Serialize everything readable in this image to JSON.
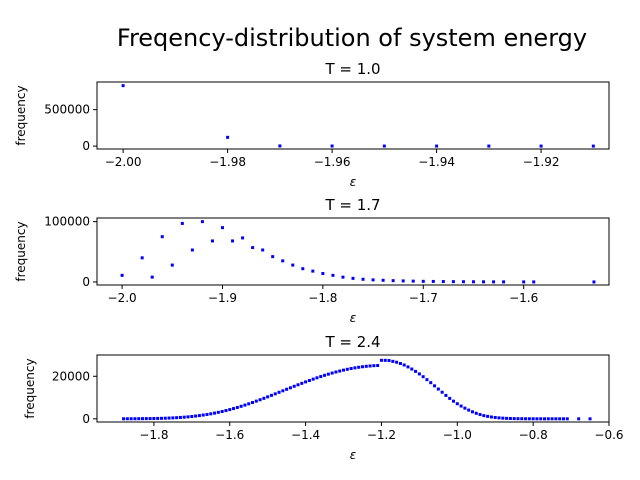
{
  "suptitle": "Freqency-distribution of system energy",
  "chart_data": [
    {
      "type": "scatter",
      "title": "T = 1.0",
      "xlabel": "ε",
      "ylabel": "frequency",
      "xlim": [
        -2.005,
        -1.907
      ],
      "ylim": [
        -40000,
        880000
      ],
      "xticks": [
        -2.0,
        -1.98,
        -1.96,
        -1.94,
        -1.92
      ],
      "xtick_labels": [
        "−2.00",
        "−1.98",
        "−1.96",
        "−1.94",
        "−1.92"
      ],
      "yticks": [
        0,
        500000
      ],
      "ytick_labels": [
        "0",
        "500000"
      ],
      "color": "#0000ff",
      "x": [
        -2.0,
        -1.98,
        -1.97,
        -1.96,
        -1.95,
        -1.94,
        -1.93,
        -1.92,
        -1.91
      ],
      "y": [
        830000,
        120000,
        2000,
        1000,
        500,
        300,
        200,
        100,
        50
      ]
    },
    {
      "type": "scatter",
      "title": "T = 1.7",
      "xlabel": "ε",
      "ylabel": "frequency",
      "xlim": [
        -2.025,
        -1.515
      ],
      "ylim": [
        -5000,
        106000
      ],
      "xticks": [
        -2.0,
        -1.9,
        -1.8,
        -1.7,
        -1.6
      ],
      "xtick_labels": [
        "−2.0",
        "−1.9",
        "−1.8",
        "−1.7",
        "−1.6"
      ],
      "yticks": [
        0,
        100000
      ],
      "ytick_labels": [
        "0",
        "100000"
      ],
      "color": "#0000ff",
      "x": [
        -2.0,
        -1.98,
        -1.97,
        -1.96,
        -1.95,
        -1.94,
        -1.93,
        -1.92,
        -1.91,
        -1.9,
        -1.89,
        -1.88,
        -1.87,
        -1.86,
        -1.85,
        -1.84,
        -1.83,
        -1.82,
        -1.81,
        -1.8,
        -1.79,
        -1.78,
        -1.77,
        -1.76,
        -1.75,
        -1.74,
        -1.73,
        -1.72,
        -1.71,
        -1.7,
        -1.69,
        -1.68,
        -1.67,
        -1.66,
        -1.65,
        -1.64,
        -1.63,
        -1.62,
        -1.6,
        -1.59,
        -1.53
      ],
      "y": [
        11000,
        40000,
        8000,
        75000,
        28000,
        97000,
        53000,
        100000,
        68000,
        90000,
        68000,
        73000,
        57000,
        53000,
        42000,
        35000,
        28000,
        22000,
        18000,
        14000,
        11000,
        8000,
        6000,
        4500,
        3500,
        2800,
        2200,
        1800,
        1400,
        1100,
        900,
        700,
        550,
        450,
        350,
        280,
        220,
        180,
        120,
        100,
        50
      ]
    },
    {
      "type": "scatter",
      "title": "T = 2.4",
      "xlabel": "ε",
      "ylabel": "frequency",
      "xlim": [
        -1.95,
        -0.6
      ],
      "ylim": [
        -1500,
        30000
      ],
      "xticks": [
        -1.8,
        -1.6,
        -1.4,
        -1.2,
        -1.0,
        -0.8,
        -0.6
      ],
      "xtick_labels": [
        "−1.8",
        "−1.6",
        "−1.4",
        "−1.2",
        "−1.0",
        "−0.8",
        "−0.6"
      ],
      "yticks": [
        0,
        20000
      ],
      "ytick_labels": [
        "0",
        "20000"
      ],
      "color": "#0000ff",
      "x": [
        -1.88,
        -1.87,
        -1.86,
        -1.85,
        -1.84,
        -1.83,
        -1.82,
        -1.81,
        -1.8,
        -1.79,
        -1.78,
        -1.77,
        -1.76,
        -1.75,
        -1.74,
        -1.73,
        -1.72,
        -1.71,
        -1.7,
        -1.69,
        -1.68,
        -1.67,
        -1.66,
        -1.65,
        -1.64,
        -1.63,
        -1.62,
        -1.61,
        -1.6,
        -1.59,
        -1.58,
        -1.57,
        -1.56,
        -1.55,
        -1.54,
        -1.53,
        -1.52,
        -1.51,
        -1.5,
        -1.49,
        -1.48,
        -1.47,
        -1.46,
        -1.45,
        -1.44,
        -1.43,
        -1.42,
        -1.41,
        -1.4,
        -1.39,
        -1.38,
        -1.37,
        -1.36,
        -1.35,
        -1.34,
        -1.33,
        -1.32,
        -1.31,
        -1.3,
        -1.29,
        -1.28,
        -1.27,
        -1.26,
        -1.25,
        -1.24,
        -1.23,
        -1.22,
        -1.21,
        -1.2,
        -1.19,
        -1.18,
        -1.17,
        -1.16,
        -1.15,
        -1.14,
        -1.13,
        -1.12,
        -1.11,
        -1.1,
        -1.09,
        -1.08,
        -1.07,
        -1.06,
        -1.05,
        -1.04,
        -1.03,
        -1.02,
        -1.01,
        -1.0,
        -0.99,
        -0.98,
        -0.97,
        -0.96,
        -0.95,
        -0.94,
        -0.93,
        -0.92,
        -0.91,
        -0.9,
        -0.89,
        -0.88,
        -0.87,
        -0.86,
        -0.85,
        -0.84,
        -0.83,
        -0.82,
        -0.81,
        -0.8,
        -0.79,
        -0.78,
        -0.77,
        -0.76,
        -0.75,
        -0.74,
        -0.73,
        -0.72,
        -0.71,
        -0.68,
        -0.65
      ],
      "y": [
        15,
        21,
        28,
        38,
        50,
        66,
        86,
        110,
        141,
        179,
        226,
        283,
        351,
        432,
        528,
        640,
        771,
        922,
        1095,
        1292,
        1514,
        1763,
        2040,
        2346,
        2682,
        3048,
        3445,
        3873,
        4331,
        4819,
        5336,
        5881,
        6452,
        7048,
        7667,
        8307,
        8966,
        9640,
        10329,
        11028,
        11735,
        12448,
        13163,
        13878,
        14590,
        15296,
        15994,
        16681,
        17355,
        18013,
        18654,
        19275,
        19874,
        20448,
        20996,
        21516,
        22006,
        22465,
        22891,
        23282,
        23638,
        23957,
        24238,
        24481,
        24684,
        24848,
        24972,
        25056,
        27500,
        27500,
        27400,
        27000,
        26600,
        26000,
        25300,
        24400,
        23400,
        22300,
        21100,
        19800,
        18400,
        17000,
        15500,
        14000,
        12500,
        11000,
        9600,
        8300,
        7100,
        6000,
        5000,
        4100,
        3300,
        2600,
        2000,
        1500,
        1150,
        850,
        620,
        440,
        310,
        210,
        140,
        95,
        60,
        40,
        25,
        15,
        10,
        6,
        4,
        3,
        2,
        1,
        1,
        1,
        0,
        0,
        0,
        0
      ]
    }
  ]
}
